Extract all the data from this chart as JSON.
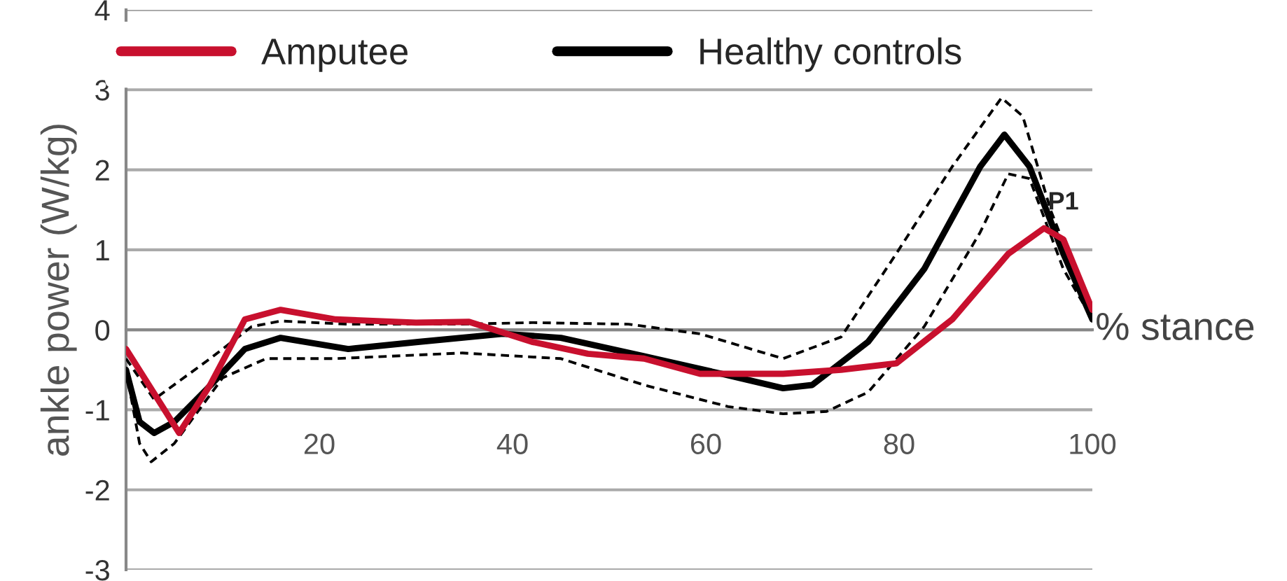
{
  "chart_data": {
    "type": "line",
    "ylabel": "ankle power (W/kg)",
    "xlabel": "% stance",
    "xlim": [
      0,
      100
    ],
    "xticks": [
      20,
      40,
      60,
      80,
      100
    ],
    "ylim": [
      -3,
      4
    ],
    "yticks": [
      -3,
      -2,
      -1,
      0,
      1,
      2,
      3,
      4
    ],
    "grid": "y",
    "legend": "top",
    "marker": "none",
    "annotations": [
      "P1"
    ],
    "series": [
      {
        "name": "Amputee",
        "color": "#c8102e",
        "line_style": "solid",
        "x": [
          0,
          5.5,
          8.7,
          12.3,
          16,
          21.7,
          30,
          35.5,
          42,
          47.8,
          53.6,
          59.4,
          68,
          74,
          79.7,
          85.5,
          91.3,
          95,
          97,
          100
        ],
        "values": [
          -0.24,
          -1.29,
          -0.69,
          0.13,
          0.25,
          0.13,
          0.09,
          0.1,
          -0.15,
          -0.3,
          -0.36,
          -0.55,
          -0.55,
          -0.5,
          -0.42,
          0.13,
          0.95,
          1.27,
          1.13,
          0.25
        ]
      },
      {
        "name": "Healthy controls",
        "color": "#000000",
        "line_style": "solid",
        "x": [
          0,
          1.4,
          2.9,
          5,
          8.7,
          12.3,
          16,
          23,
          30.4,
          39,
          45,
          53.6,
          62,
          68,
          71,
          76.8,
          82.6,
          88.4,
          90.9,
          93.5,
          97,
          100
        ],
        "values": [
          -0.5,
          -1.15,
          -1.29,
          -1.15,
          -0.7,
          -0.24,
          -0.1,
          -0.24,
          -0.15,
          -0.05,
          -0.1,
          -0.33,
          -0.56,
          -0.73,
          -0.69,
          -0.15,
          0.76,
          2.04,
          2.44,
          2.04,
          0.95,
          0.13
        ]
      },
      {
        "color": "#000000",
        "line_style": "dashed",
        "x": [
          0,
          2.9,
          8.7,
          13,
          16,
          23,
          34.8,
          42,
          52,
          59.4,
          68,
          74,
          79.7,
          85.5,
          90.6,
          92.8,
          95.7,
          100
        ],
        "values": [
          -0.36,
          -0.87,
          -0.36,
          0.04,
          0.11,
          0.07,
          0.07,
          0.09,
          0.07,
          -0.05,
          -0.36,
          -0.09,
          0.95,
          2.04,
          2.9,
          2.67,
          1.49,
          0.18
        ]
      },
      {
        "color": "#000000",
        "line_style": "dashed",
        "x": [
          0,
          1.4,
          2.6,
          5,
          10,
          14.5,
          21.7,
          34.8,
          45,
          53.6,
          62.3,
          68,
          72.5,
          76.8,
          82.6,
          88.4,
          91.3,
          93.5,
          97,
          100
        ],
        "values": [
          -0.5,
          -1.42,
          -1.65,
          -1.42,
          -0.6,
          -0.36,
          -0.36,
          -0.29,
          -0.36,
          -0.69,
          -0.96,
          -1.05,
          -1.02,
          -0.78,
          0.04,
          1.22,
          1.95,
          1.89,
          0.76,
          0.13
        ]
      }
    ]
  }
}
